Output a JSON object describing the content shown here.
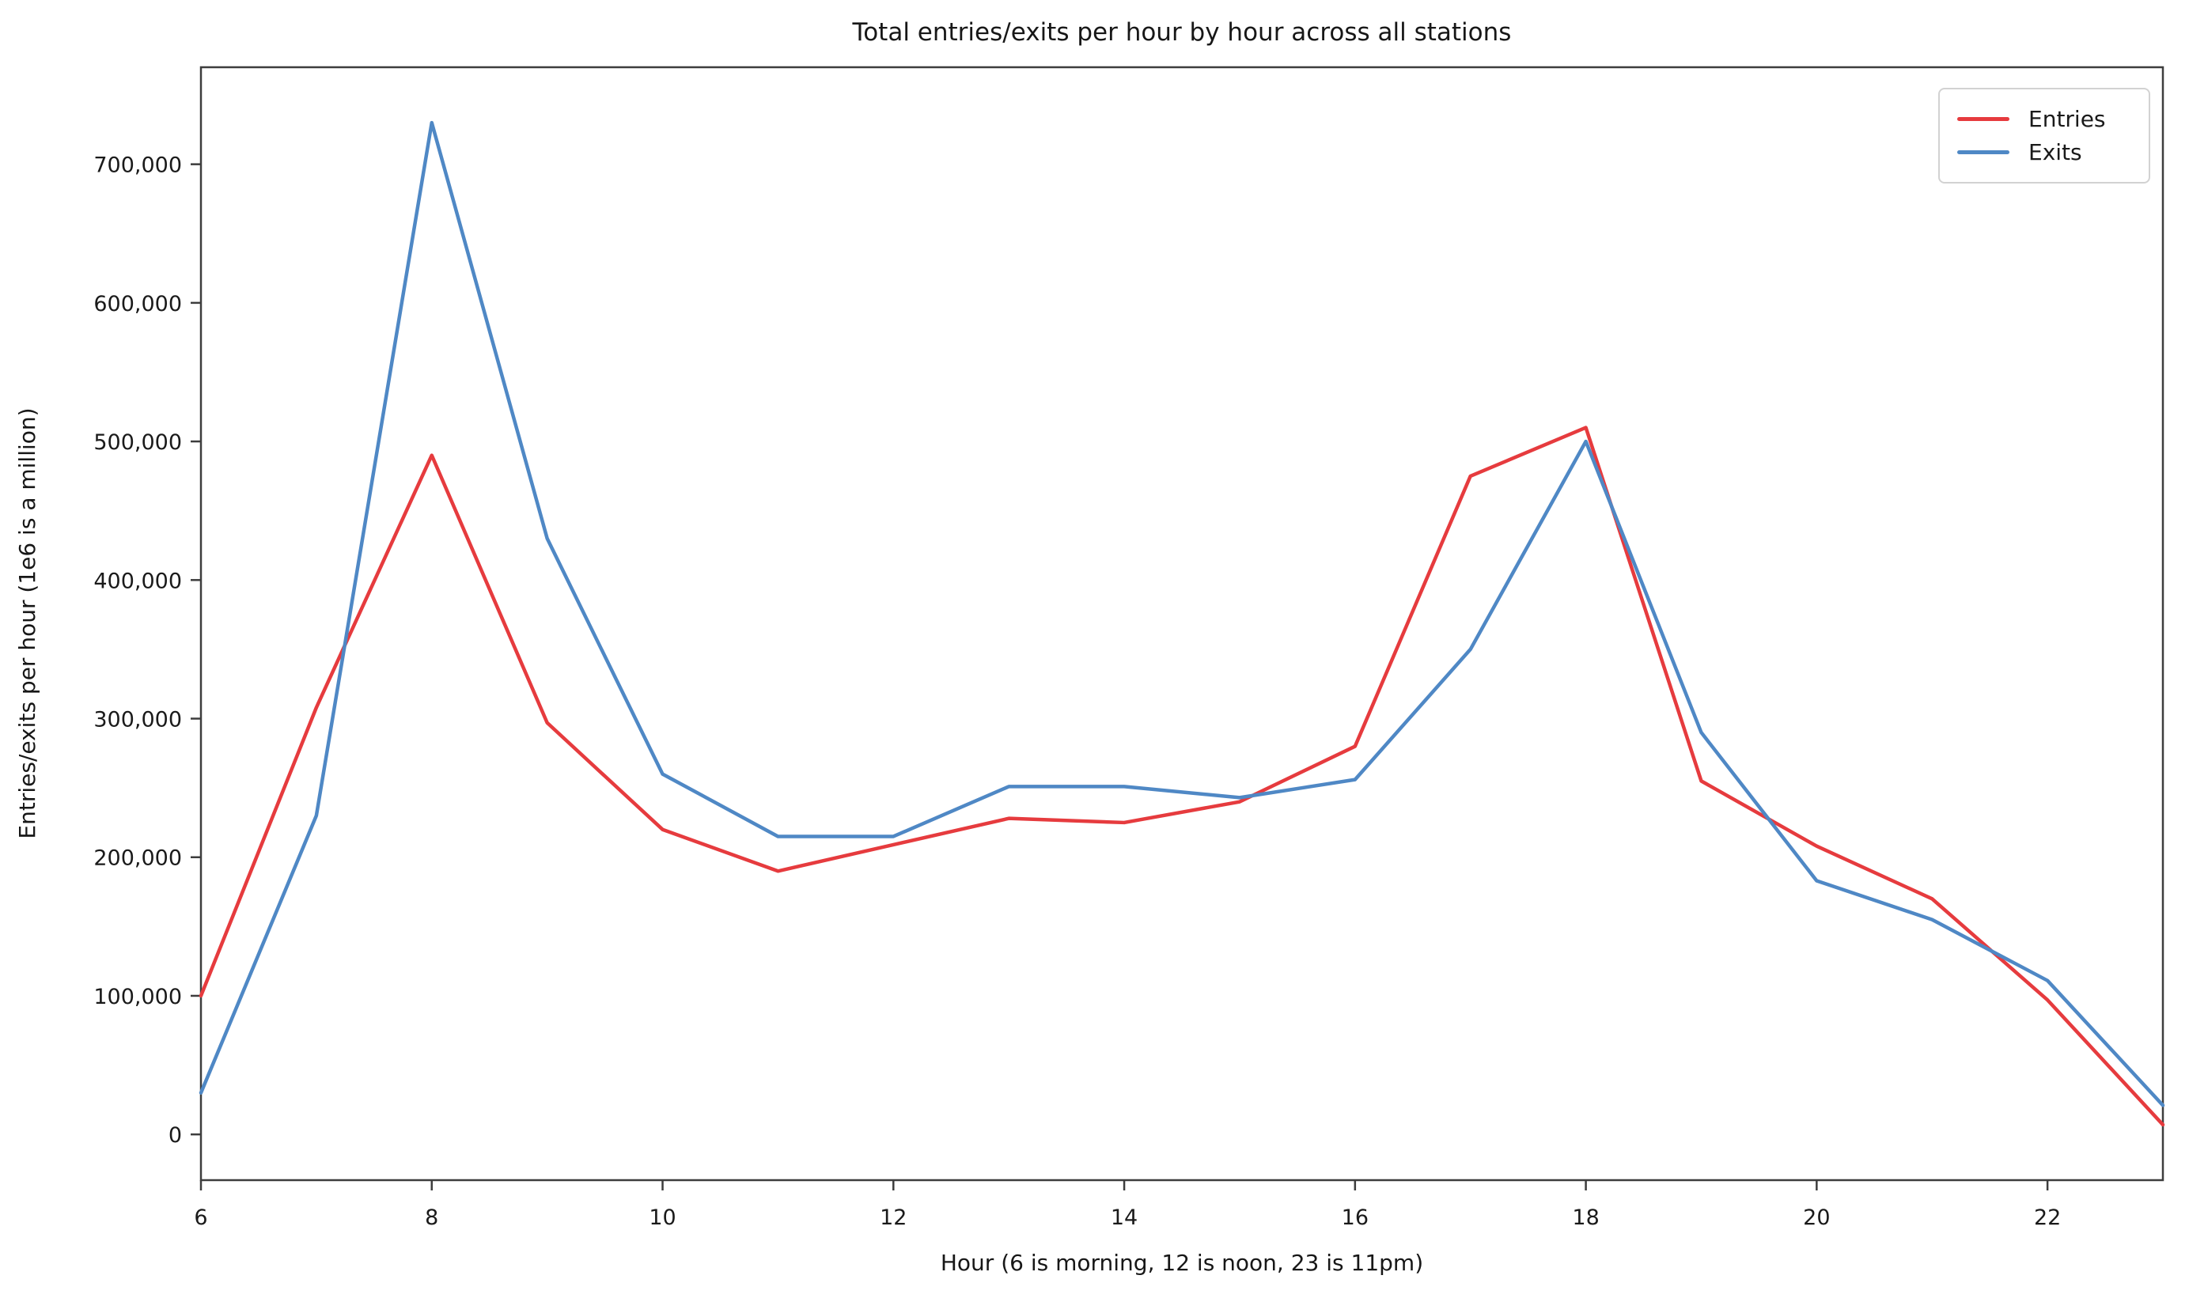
{
  "title": "Total entries/exits per hour by hour across all stations",
  "chart_data": {
    "type": "line",
    "title": "Total entries/exits per hour by hour across all stations",
    "xlabel": "Hour (6 is morning, 12 is noon, 23 is 11pm)",
    "ylabel": "Entries/exits per hour (1e6 is a million)",
    "x": [
      6,
      7,
      8,
      9,
      10,
      11,
      12,
      13,
      14,
      15,
      16,
      17,
      18,
      19,
      20,
      21,
      22,
      23
    ],
    "series": [
      {
        "name": "Entries",
        "color": "#e63b3e",
        "values": [
          100000,
          308000,
          490000,
          297000,
          220000,
          190000,
          209000,
          228000,
          225000,
          240000,
          280000,
          475000,
          510000,
          255000,
          208000,
          170000,
          97000,
          7000
        ]
      },
      {
        "name": "Exits",
        "color": "#4f88c5",
        "values": [
          30000,
          230000,
          730000,
          430000,
          260000,
          215000,
          215000,
          251000,
          251000,
          243000,
          256000,
          350000,
          500000,
          290000,
          183000,
          155000,
          111000,
          21000
        ]
      }
    ],
    "xlim": [
      6,
      23
    ],
    "ylim": [
      -33000,
      770000
    ],
    "xticks": [
      6,
      8,
      10,
      12,
      14,
      16,
      18,
      20,
      22
    ],
    "yticks": [
      0,
      100000,
      200000,
      300000,
      400000,
      500000,
      600000,
      700000
    ],
    "grid": false,
    "legend_position": "upper right"
  }
}
